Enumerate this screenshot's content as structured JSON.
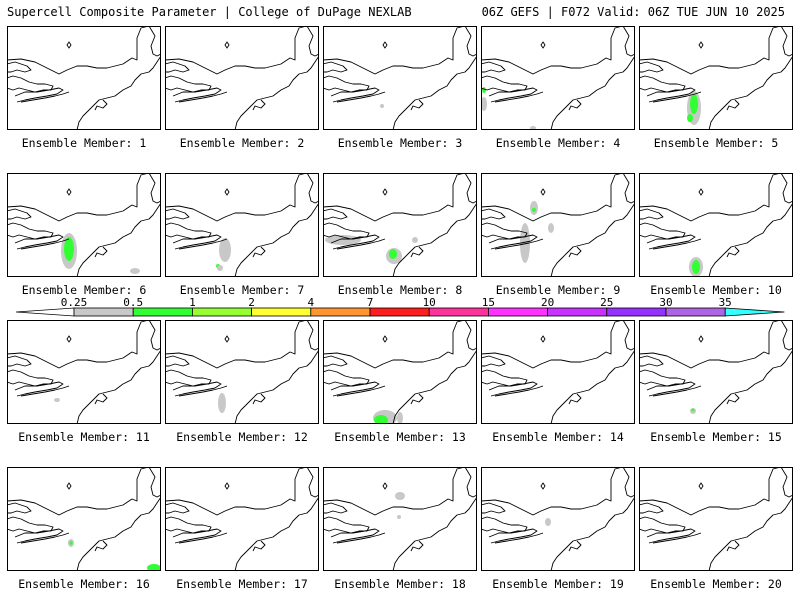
{
  "header": {
    "title_left": "Supercell Composite Parameter | College of DuPage NEXLAB",
    "title_right": "06Z GEFS | F072 Valid: 06Z TUE JUN 10 2025"
  },
  "panels": [
    {
      "label": "Ensemble Member: 1",
      "blobs": []
    },
    {
      "label": "Ensemble Member: 2",
      "blobs": []
    },
    {
      "label": "Ensemble Member: 3",
      "blobs": [
        {
          "level": "0.25",
          "x": 59,
          "y": 80,
          "rx": 2,
          "ry": 2
        }
      ]
    },
    {
      "label": "Ensemble Member: 4",
      "blobs": [
        {
          "level": "0.25",
          "x": 3,
          "y": 78,
          "rx": 3,
          "ry": 7
        },
        {
          "level": "0.5",
          "x": 3,
          "y": 64,
          "rx": 2,
          "ry": 3
        },
        {
          "level": "0.25",
          "x": 52,
          "y": 102,
          "rx": 3,
          "ry": 2
        }
      ]
    },
    {
      "label": "Ensemble Member: 5",
      "blobs": [
        {
          "level": "0.25",
          "x": 55,
          "y": 82,
          "rx": 7,
          "ry": 17
        },
        {
          "level": "0.5",
          "x": 55,
          "y": 78,
          "rx": 4,
          "ry": 10
        },
        {
          "level": "0.5",
          "x": 51,
          "y": 92,
          "rx": 3,
          "ry": 4
        }
      ]
    },
    {
      "label": "Ensemble Member: 6",
      "blobs": [
        {
          "level": "0.25",
          "x": 62,
          "y": 78,
          "rx": 8,
          "ry": 18
        },
        {
          "level": "0.5",
          "x": 62,
          "y": 76,
          "rx": 5,
          "ry": 12
        },
        {
          "level": "0.25",
          "x": 128,
          "y": 98,
          "rx": 5,
          "ry": 3
        }
      ]
    },
    {
      "label": "Ensemble Member: 7",
      "blobs": [
        {
          "level": "0.25",
          "x": 60,
          "y": 77,
          "rx": 6,
          "ry": 12
        },
        {
          "level": "0.5",
          "x": 53,
          "y": 93,
          "rx": 2,
          "ry": 2
        },
        {
          "level": "0.25",
          "x": 55,
          "y": 95,
          "rx": 3,
          "ry": 3
        }
      ]
    },
    {
      "label": "Ensemble Member: 8",
      "blobs": [
        {
          "level": "0.25",
          "x": 20,
          "y": 67,
          "rx": 18,
          "ry": 5
        },
        {
          "level": "0.25",
          "x": 71,
          "y": 83,
          "rx": 8,
          "ry": 8
        },
        {
          "level": "0.5",
          "x": 70,
          "y": 81,
          "rx": 4,
          "ry": 5
        },
        {
          "level": "0.25",
          "x": 92,
          "y": 67,
          "rx": 3,
          "ry": 3
        }
      ]
    },
    {
      "label": "Ensemble Member: 9",
      "blobs": [
        {
          "level": "0.25",
          "x": 53,
          "y": 35,
          "rx": 4,
          "ry": 7
        },
        {
          "level": "0.5",
          "x": 53,
          "y": 37,
          "rx": 2,
          "ry": 2
        },
        {
          "level": "0.25",
          "x": 44,
          "y": 70,
          "rx": 5,
          "ry": 20
        },
        {
          "level": "0.25",
          "x": 70,
          "y": 55,
          "rx": 3,
          "ry": 5
        }
      ]
    },
    {
      "label": "Ensemble Member: 10",
      "blobs": [
        {
          "level": "0.25",
          "x": 57,
          "y": 94,
          "rx": 7,
          "ry": 10
        },
        {
          "level": "0.5",
          "x": 57,
          "y": 94,
          "rx": 4,
          "ry": 7
        }
      ]
    },
    {
      "label": "Ensemble Member: 11",
      "blobs": [
        {
          "level": "0.25",
          "x": 50,
          "y": 80,
          "rx": 3,
          "ry": 2
        }
      ]
    },
    {
      "label": "Ensemble Member: 12",
      "blobs": [
        {
          "level": "0.25",
          "x": 57,
          "y": 83,
          "rx": 4,
          "ry": 10
        }
      ]
    },
    {
      "label": "Ensemble Member: 13",
      "blobs": [
        {
          "level": "0.25",
          "x": 62,
          "y": 98,
          "rx": 12,
          "ry": 8
        },
        {
          "level": "0.5",
          "x": 58,
          "y": 100,
          "rx": 7,
          "ry": 5
        },
        {
          "level": "0.25",
          "x": 77,
          "y": 98,
          "rx": 3,
          "ry": 6
        }
      ]
    },
    {
      "label": "Ensemble Member: 14",
      "blobs": []
    },
    {
      "label": "Ensemble Member: 15",
      "blobs": [
        {
          "level": "0.25",
          "x": 54,
          "y": 91,
          "rx": 3,
          "ry": 3
        },
        {
          "level": "0.5",
          "x": 54,
          "y": 90,
          "rx": 1.5,
          "ry": 1.5
        }
      ]
    },
    {
      "label": "Ensemble Member: 16",
      "blobs": [
        {
          "level": "0.25",
          "x": 64,
          "y": 76,
          "rx": 3,
          "ry": 4
        },
        {
          "level": "0.5",
          "x": 64,
          "y": 76,
          "rx": 1.5,
          "ry": 2
        },
        {
          "level": "0.5",
          "x": 147,
          "y": 101,
          "rx": 7,
          "ry": 4
        }
      ]
    },
    {
      "label": "Ensemble Member: 17",
      "blobs": []
    },
    {
      "label": "Ensemble Member: 18",
      "blobs": [
        {
          "level": "0.25",
          "x": 77,
          "y": 29,
          "rx": 5,
          "ry": 4
        },
        {
          "level": "0.25",
          "x": 76,
          "y": 50,
          "rx": 2,
          "ry": 2
        }
      ]
    },
    {
      "label": "Ensemble Member: 19",
      "blobs": [
        {
          "level": "0.25",
          "x": 67,
          "y": 55,
          "rx": 3,
          "ry": 4
        }
      ]
    },
    {
      "label": "Ensemble Member: 20",
      "blobs": []
    }
  ],
  "colorbar": {
    "labels": [
      "0.25",
      "0.5",
      "1",
      "2",
      "4",
      "7",
      "10",
      "15",
      "20",
      "25",
      "30",
      "35"
    ],
    "colors": [
      "#c8c8c8",
      "#32ff32",
      "#96ff32",
      "#ffff32",
      "#ff9632",
      "#ff1e1e",
      "#ff329b",
      "#ff32ff",
      "#c832ff",
      "#9632ff",
      "#af64e6",
      "#32ffff"
    ]
  },
  "colors": {
    "map_line": "#000000",
    "level_0.25": "#c8c8c8",
    "level_0.5": "#32ff32"
  }
}
